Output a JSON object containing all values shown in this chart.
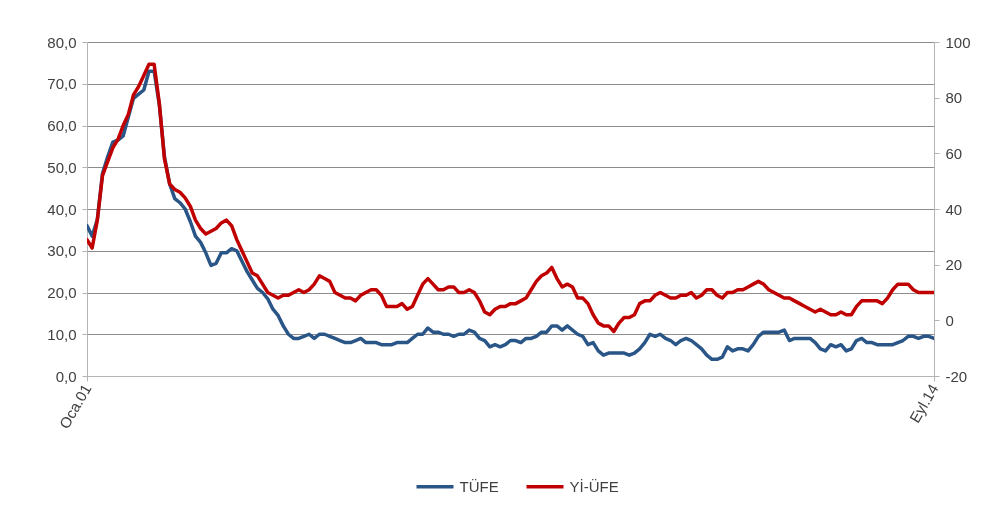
{
  "chart_data": {
    "type": "line",
    "categories": [
      "Oca.01",
      null,
      null,
      null,
      null,
      null,
      null,
      null,
      null,
      null,
      null,
      null,
      null,
      null,
      null,
      null,
      null,
      null,
      null,
      null,
      null,
      null,
      null,
      null,
      null,
      null,
      null,
      null,
      null,
      null,
      null,
      null,
      null,
      null,
      null,
      null,
      null,
      null,
      null,
      null,
      null,
      null,
      null,
      null,
      null,
      null,
      null,
      null,
      null,
      null,
      null,
      null,
      null,
      null,
      null,
      null,
      null,
      null,
      null,
      null,
      null,
      null,
      null,
      null,
      null,
      null,
      null,
      null,
      null,
      null,
      null,
      null,
      null,
      null,
      null,
      null,
      null,
      null,
      null,
      null,
      null,
      null,
      null,
      null,
      null,
      null,
      null,
      null,
      null,
      null,
      null,
      null,
      null,
      null,
      null,
      null,
      null,
      null,
      null,
      null,
      null,
      null,
      null,
      null,
      null,
      null,
      null,
      null,
      null,
      null,
      null,
      null,
      null,
      null,
      null,
      null,
      null,
      null,
      null,
      null,
      null,
      null,
      null,
      null,
      null,
      null,
      null,
      null,
      null,
      null,
      null,
      null,
      null,
      null,
      null,
      null,
      null,
      null,
      null,
      null,
      null,
      null,
      null,
      null,
      null,
      null,
      null,
      null,
      null,
      null,
      null,
      null,
      null,
      null,
      null,
      null,
      null,
      null,
      null,
      null,
      null,
      null,
      null,
      null,
      "Eyl.14"
    ],
    "series": [
      {
        "name": "TÜFE",
        "color": "#2a5587",
        "values": [
          36,
          33.5,
          37.5,
          48.5,
          52.5,
          56,
          56.5,
          57.5,
          62,
          66.5,
          67.5,
          68.5,
          73,
          73,
          65,
          52.5,
          46,
          42.5,
          41.5,
          40,
          37,
          33.5,
          32,
          29.5,
          26.5,
          27,
          29.5,
          29.5,
          30.5,
          30,
          27.5,
          25,
          23,
          21,
          20,
          18.5,
          16,
          14.5,
          12,
          10,
          9,
          9,
          9.5,
          10,
          9,
          10,
          10,
          9.5,
          9,
          8.5,
          8,
          8,
          8.5,
          9,
          8,
          8,
          8,
          7.5,
          7.5,
          7.5,
          8,
          8,
          8,
          9,
          10,
          10,
          11.5,
          10.5,
          10.5,
          10,
          10,
          9.5,
          10,
          10,
          11,
          10.5,
          9,
          8.5,
          7,
          7.5,
          7,
          7.5,
          8.5,
          8.5,
          8,
          9,
          9,
          9.5,
          10.5,
          10.5,
          12,
          12,
          11,
          12,
          11,
          10,
          9.5,
          7.5,
          8,
          6,
          5,
          5.5,
          5.5,
          5.5,
          5.5,
          5,
          5.5,
          6.5,
          8,
          10,
          9.5,
          10,
          9,
          8.5,
          7.5,
          8.5,
          9,
          8.5,
          7.5,
          6.5,
          5,
          4,
          4,
          4.5,
          7,
          6,
          6.5,
          6.5,
          6,
          7.5,
          9.5,
          10.5,
          10.5,
          10.5,
          10.5,
          11,
          8.5,
          9,
          9,
          9,
          9,
          8,
          6.5,
          6,
          7.5,
          7,
          7.5,
          6,
          6.5,
          8.5,
          9,
          8,
          8,
          7.5,
          7.5,
          7.5,
          7.5,
          8,
          8.5,
          9.5,
          9.5,
          9,
          9.5,
          9.5,
          9
        ]
      },
      {
        "name": "Yİ-ÜFE",
        "color": "#c00000",
        "axis": "y2",
        "values": [
          29,
          26,
          36,
          52,
          57,
          62,
          65,
          70,
          74,
          81,
          84,
          88,
          92,
          92,
          78,
          58,
          49,
          47,
          46,
          44,
          41,
          36,
          33,
          31,
          32,
          33,
          35,
          36,
          34,
          29,
          25,
          21,
          17,
          16,
          13,
          10,
          9,
          8,
          9,
          9,
          10,
          11,
          10,
          11,
          13,
          16,
          15,
          14,
          10,
          9,
          8,
          8,
          7,
          9,
          10,
          11,
          11,
          9,
          5,
          5,
          5,
          6,
          4,
          5,
          9,
          13,
          15,
          13,
          11,
          11,
          12,
          12,
          10,
          10,
          11,
          10,
          7,
          3,
          2,
          4,
          5,
          5,
          6,
          6,
          7,
          8,
          11,
          14,
          16,
          17,
          19,
          15,
          12,
          13,
          12,
          8,
          8,
          6,
          2,
          -1,
          -2,
          -2,
          -4,
          -1,
          1,
          1,
          2,
          6,
          7,
          7,
          9,
          10,
          9,
          8,
          8,
          9,
          9,
          10,
          8,
          9,
          11,
          11,
          9,
          8,
          10,
          10,
          11,
          11,
          12,
          13,
          14,
          13,
          11,
          10,
          9,
          8,
          8,
          7,
          6,
          5,
          4,
          3,
          4,
          3,
          2,
          2,
          3,
          2,
          2,
          5,
          7,
          7,
          7,
          7,
          6,
          8,
          11,
          13,
          13,
          13,
          11,
          10,
          10,
          10,
          10
        ]
      }
    ],
    "ylim": [
      0,
      80
    ],
    "yticks": [
      {
        "value": 0,
        "label": "0,0"
      },
      {
        "value": 10,
        "label": "10,0"
      },
      {
        "value": 20,
        "label": "20,0"
      },
      {
        "value": 30,
        "label": "30,0"
      },
      {
        "value": 40,
        "label": "40,0"
      },
      {
        "value": 50,
        "label": "50,0"
      },
      {
        "value": 60,
        "label": "60,0"
      },
      {
        "value": 70,
        "label": "70,0"
      },
      {
        "value": 80,
        "label": "80,0"
      }
    ],
    "y2lim": [
      -20,
      100
    ],
    "y2ticks": [
      -20,
      0,
      20,
      40,
      60,
      80,
      100
    ],
    "grid": "y",
    "legend": "bottom",
    "line_style": "solid"
  }
}
